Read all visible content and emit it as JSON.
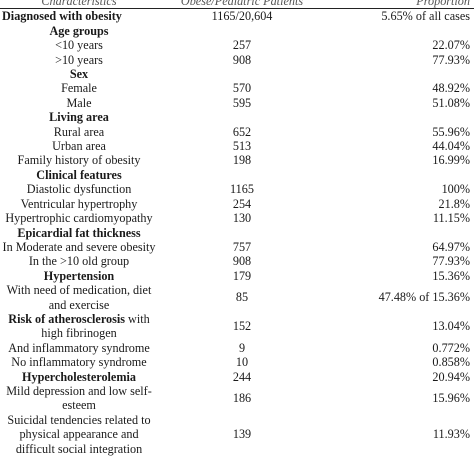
{
  "header": {
    "col1": "Characteristics",
    "col2": "Obese/Pediatric Patients",
    "col3": "Proportion"
  },
  "rows": [
    {
      "label": "Diagnosed with obesity",
      "value": "1165/20,604",
      "proportion": "5.65% of all cases",
      "bold": true,
      "left": true
    },
    {
      "label": "Age groups",
      "value": "",
      "proportion": "",
      "bold": true
    },
    {
      "label": "<10 years",
      "value": "257",
      "proportion": "22.07%"
    },
    {
      "label": ">10 years",
      "value": "908",
      "proportion": "77.93%"
    },
    {
      "label": "Sex",
      "value": "",
      "proportion": "",
      "bold": true
    },
    {
      "label": "Female",
      "value": "570",
      "proportion": "48.92%"
    },
    {
      "label": "Male",
      "value": "595",
      "proportion": "51.08%"
    },
    {
      "label": "Living area",
      "value": "",
      "proportion": "",
      "bold": true
    },
    {
      "label": "Rural area",
      "value": "652",
      "proportion": "55.96%"
    },
    {
      "label": "Urban area",
      "value": "513",
      "proportion": "44.04%"
    },
    {
      "label": "Family history of obesity",
      "value": "198",
      "proportion": "16.99%"
    },
    {
      "label": "Clinical features",
      "value": "",
      "proportion": "",
      "bold": true
    },
    {
      "label": "Diastolic dysfunction",
      "value": "1165",
      "proportion": "100%"
    },
    {
      "label": "Ventricular hypertrophy",
      "value": "254",
      "proportion": "21.8%"
    },
    {
      "label": "Hypertrophic cardiomyopathy",
      "value": "130",
      "proportion": "11.15%"
    },
    {
      "label": "Epicardial fat thickness",
      "value": "",
      "proportion": "",
      "bold": true
    },
    {
      "label": "In Moderate and severe obesity",
      "value": "757",
      "proportion": "64.97%"
    },
    {
      "label": "In the >10 old group",
      "value": "908",
      "proportion": "77.93%"
    },
    {
      "label": "Hypertension",
      "value": "179",
      "proportion": "15.36%",
      "bold": true
    },
    {
      "label": "With need of medication, diet and exercise",
      "value": "85",
      "proportion": "47.48% of 15.36%"
    },
    {
      "label": "Risk of atherosclerosis with high fibrinogen",
      "value": "152",
      "proportion": "13.04%",
      "boldPrefix": "Risk of atherosclerosis",
      "rest": " with high fibrinogen"
    },
    {
      "label": "And inflammatory syndrome",
      "value": "9",
      "proportion": "0.772%"
    },
    {
      "label": "No inflammatory syndrome",
      "value": "10",
      "proportion": "0.858%"
    },
    {
      "label": "Hypercholesterolemia",
      "value": "244",
      "proportion": "20.94%",
      "bold": true
    },
    {
      "label": "Mild depression and low self-esteem",
      "value": "186",
      "proportion": "15.96%"
    },
    {
      "label": "Suicidal tendencies related to physical appearance and difficult social integration",
      "value": "139",
      "proportion": "11.93%"
    }
  ]
}
